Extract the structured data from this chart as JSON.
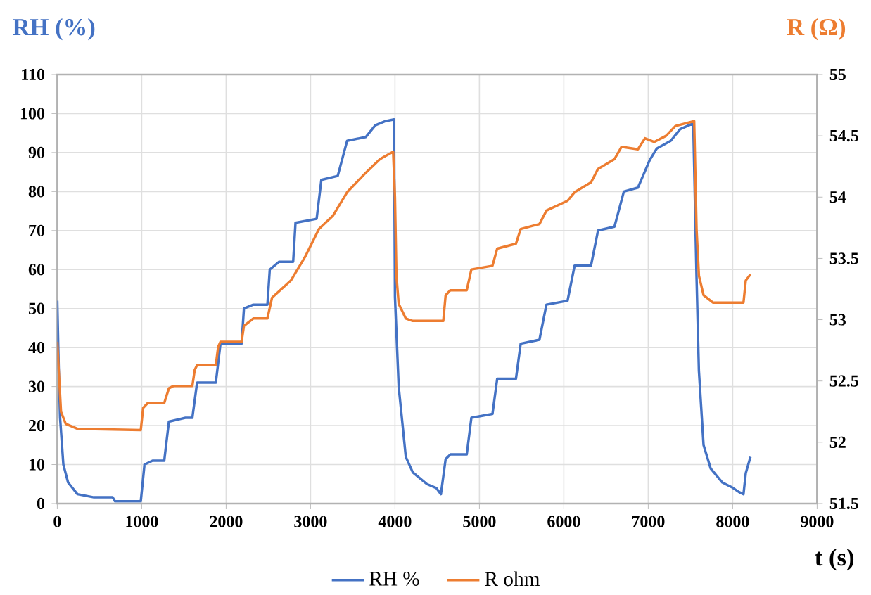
{
  "chart_data": {
    "type": "line",
    "xlabel": "t (s)",
    "ylabel": "RH (%)",
    "y2label": "R (Ω)",
    "xlim": [
      0,
      9000
    ],
    "xticks": [
      0,
      1000,
      2000,
      3000,
      4000,
      5000,
      6000,
      7000,
      8000,
      9000
    ],
    "ylim": [
      0,
      110
    ],
    "yticks": [
      0,
      10,
      20,
      30,
      40,
      50,
      60,
      70,
      80,
      90,
      100,
      110
    ],
    "y2lim": [
      51.5,
      55
    ],
    "y2ticks": [
      51.5,
      52,
      52.5,
      53,
      53.5,
      54,
      54.5,
      55
    ],
    "grid": true,
    "legend": "bottom",
    "marker": "none",
    "line_style": "solid",
    "series": [
      {
        "name": "RH %",
        "color": "#4472c4",
        "x": [
          0,
          17,
          33,
          72,
          128,
          239,
          433,
          656,
          683,
          989,
          1033,
          1128,
          1267,
          1322,
          1517,
          1600,
          1656,
          1878,
          1933,
          2183,
          2211,
          2322,
          2489,
          2517,
          2628,
          2794,
          2822,
          3072,
          3128,
          3322,
          3433,
          3656,
          3767,
          3878,
          3989,
          4000,
          4044,
          4128,
          4211,
          4378,
          4489,
          4544,
          4600,
          4655,
          4850,
          4905,
          5155,
          5211,
          5433,
          5489,
          5711,
          5794,
          6044,
          6128,
          6322,
          6405,
          6600,
          6711,
          6878,
          7016,
          7100,
          7266,
          7378,
          7533,
          7572,
          7600,
          7655,
          7739,
          7878,
          7989,
          8072,
          8128,
          8155,
          8211
        ],
        "values": [
          52,
          35,
          22,
          10,
          5.4,
          2.4,
          1.6,
          1.6,
          0.6,
          0.6,
          10,
          11,
          11,
          21,
          22,
          22,
          31,
          31,
          41,
          41,
          50,
          51,
          51,
          60,
          62,
          62,
          72,
          73,
          83,
          84,
          93,
          94,
          97,
          98,
          98.5,
          53,
          30,
          12,
          8,
          5,
          4,
          2.4,
          11.4,
          12.6,
          12.6,
          22,
          23,
          32,
          32,
          41,
          42,
          51,
          52,
          61,
          61,
          70,
          71,
          80,
          81,
          88,
          91,
          93,
          96,
          97.5,
          58,
          34,
          15,
          9,
          5.4,
          4.2,
          3,
          2.4,
          7.8,
          12
        ]
      },
      {
        "name": "R ohm",
        "color": "#ed7d31",
        "axis": "y2",
        "x": [
          0,
          17,
          44,
          100,
          239,
          989,
          1017,
          1072,
          1267,
          1322,
          1378,
          1600,
          1628,
          1656,
          1878,
          1906,
          1933,
          2183,
          2211,
          2322,
          2489,
          2544,
          2767,
          2933,
          3100,
          3267,
          3433,
          3656,
          3822,
          3978,
          4000,
          4017,
          4044,
          4128,
          4211,
          4572,
          4600,
          4655,
          4850,
          4905,
          5155,
          5211,
          5433,
          5489,
          5711,
          5794,
          6044,
          6128,
          6322,
          6405,
          6600,
          6683,
          6878,
          6961,
          7072,
          7211,
          7322,
          7544,
          7572,
          7600,
          7655,
          7766,
          8128,
          8155,
          8211
        ],
        "values": [
          52.82,
          52.59,
          52.25,
          52.15,
          52.11,
          52.1,
          52.28,
          52.32,
          52.32,
          52.44,
          52.46,
          52.46,
          52.59,
          52.63,
          52.63,
          52.78,
          52.82,
          52.82,
          52.95,
          53.01,
          53.01,
          53.18,
          53.32,
          53.51,
          53.74,
          53.85,
          54.04,
          54.2,
          54.31,
          54.37,
          54.0,
          53.36,
          53.13,
          53.01,
          52.99,
          52.99,
          53.2,
          53.24,
          53.24,
          53.41,
          53.44,
          53.58,
          53.62,
          53.74,
          53.78,
          53.89,
          53.97,
          54.04,
          54.12,
          54.23,
          54.31,
          54.41,
          54.39,
          54.48,
          54.45,
          54.5,
          54.58,
          54.62,
          53.74,
          53.36,
          53.2,
          53.14,
          53.14,
          53.32,
          53.37
        ]
      }
    ]
  }
}
